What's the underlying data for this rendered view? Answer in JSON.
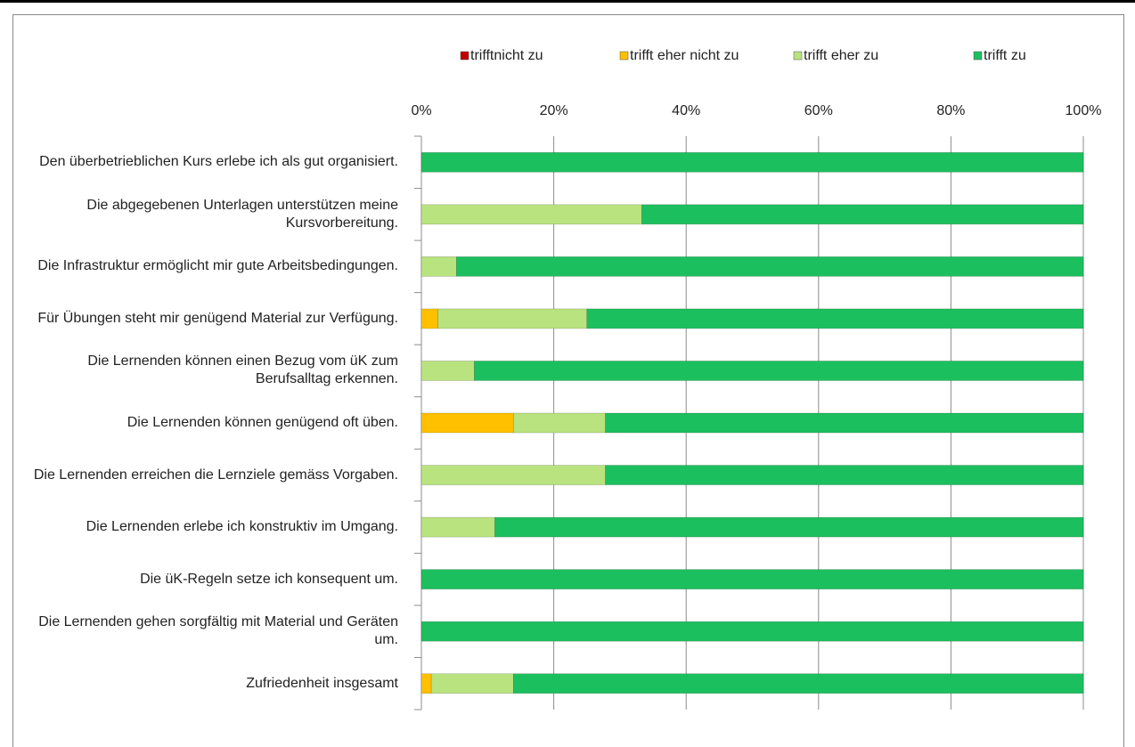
{
  "chart_data": {
    "type": "stacked_barh",
    "categories": [
      "Den überbetrieblichen Kurs erlebe ich als gut organisiert.",
      "Die abgegebenen Unterlagen unterstützen meine Kursvorbereitung.",
      "Die Infrastruktur ermöglicht mir gute Arbeitsbedingungen.",
      "Für Übungen steht mir genügend Material zur Verfügung.",
      "Die Lernenden können einen Bezug vom üK zum Berufsalltag erkennen.",
      "Die Lernenden können genügend oft üben.",
      "Die Lernenden erreichen die Lernziele gemäss Vorgaben.",
      "Die Lernenden erlebe ich konstruktiv im Umgang.",
      "Die üK-Regeln setze ich konsequent um.",
      "Die Lernenden gehen sorgfältig mit Material und Geräten um.",
      "Zufriedenheit insgesamt"
    ],
    "series": [
      {
        "name": "trifftnicht zu",
        "color": "#c00000",
        "values": [
          0,
          0,
          0,
          0,
          0,
          0,
          0,
          0,
          0,
          0,
          0
        ]
      },
      {
        "name": "trifft eher nicht zu",
        "color": "#ffc000",
        "values": [
          0,
          0,
          0,
          2.5,
          0,
          13.9,
          0,
          0,
          0,
          0,
          1.5
        ]
      },
      {
        "name": "trifft eher zu",
        "color": "#b9e37e",
        "values": [
          0,
          33.3,
          5.3,
          22.5,
          8,
          13.9,
          27.8,
          11.1,
          0,
          0,
          12.4
        ]
      },
      {
        "name": "trifft zu",
        "color": "#1cbf5e",
        "values": [
          100,
          66.7,
          94.7,
          75,
          92,
          72.2,
          72.2,
          88.9,
          100,
          100,
          86.1
        ]
      }
    ],
    "xlim": [
      0,
      100
    ],
    "xticks": [
      {
        "value": 0,
        "label": "0%"
      },
      {
        "value": 20,
        "label": "20%"
      },
      {
        "value": 40,
        "label": "40%"
      },
      {
        "value": 60,
        "label": "60%"
      },
      {
        "value": 80,
        "label": "80%"
      },
      {
        "value": 100,
        "label": "100%"
      }
    ],
    "grid": true,
    "legend": "top"
  }
}
